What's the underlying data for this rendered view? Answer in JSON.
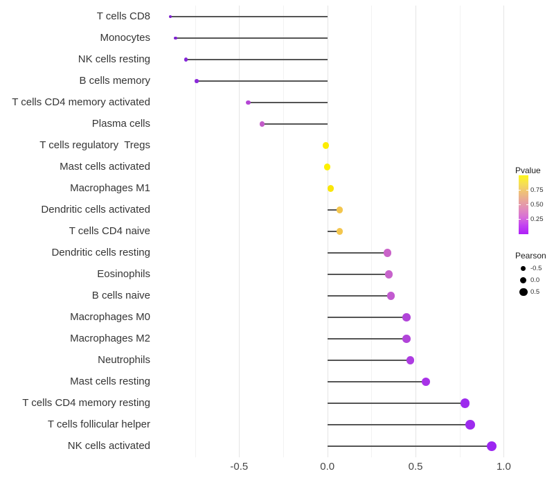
{
  "chart_data": {
    "type": "scatter",
    "variant": "lollipop",
    "title": "",
    "xlabel": "",
    "ylabel": "",
    "grid": "vertical-only",
    "legend_position": "right",
    "x_axis": {
      "range": [
        -0.98,
        1.02
      ],
      "ticks": [
        -0.5,
        0.0,
        0.5,
        1.0
      ],
      "tick_labels": [
        "-0.5",
        "0.0",
        "0.5",
        "1.0"
      ],
      "minor_gridlines": [
        -0.75,
        -0.25,
        0.25,
        0.75
      ]
    },
    "categories": [
      "T cells CD8",
      "Monocytes",
      "NK cells resting",
      "B cells memory",
      "T cells CD4 memory activated",
      "Plasma cells",
      "T cells regulatory  Tregs",
      "Mast cells activated",
      "Macrophages M1",
      "Dendritic cells activated",
      "T cells CD4 naive",
      "Dendritic cells resting",
      "Eosinophils",
      "B cells naive",
      "Macrophages M0",
      "Macrophages M2",
      "Neutrophils",
      "Mast cells resting",
      "T cells CD4 memory resting",
      "T cells follicular helper",
      "NK cells activated"
    ],
    "series": [
      {
        "name": "Pearson",
        "values": [
          -0.89,
          -0.86,
          -0.8,
          -0.74,
          -0.45,
          -0.37,
          -0.01,
          0.0,
          0.02,
          0.07,
          0.07,
          0.34,
          0.35,
          0.36,
          0.45,
          0.45,
          0.47,
          0.56,
          0.78,
          0.81,
          0.93
        ]
      }
    ],
    "point_colors": [
      "#7e22cf",
      "#7e22cf",
      "#8527d8",
      "#8b2ad9",
      "#b445d4",
      "#c35bc9",
      "#fcec03",
      "#fdf000",
      "#fae60a",
      "#f3c64e",
      "#f3c64e",
      "#ca63c9",
      "#c763cb",
      "#c25ad0",
      "#b144d9",
      "#b144d9",
      "#ae3ce2",
      "#a832e8",
      "#9d2bee",
      "#9d2bee",
      "#9c26f1"
    ],
    "stem_color": "#545454",
    "stem_anchor": 0.0
  },
  "legend": {
    "pvalue": {
      "title": "Pvalue",
      "tick_labels": [
        "0.75",
        "0.50",
        "0.25"
      ],
      "tick_values": [
        0.75,
        0.5,
        0.25
      ],
      "scale_range": [
        0,
        1
      ],
      "gradient_top_to_bottom": [
        "#fdf61b",
        "#f6df55",
        "#efc178",
        "#e8a69a",
        "#e18cbb",
        "#d76ed8",
        "#c240f2",
        "#ae1ff7"
      ]
    },
    "pearson": {
      "title": "Pearson",
      "dot_color": "#000000",
      "items": [
        {
          "label": "-0.5",
          "value": -0.5
        },
        {
          "label": "0.0",
          "value": 0.0
        },
        {
          "label": "0.5",
          "value": 0.5
        }
      ]
    }
  }
}
